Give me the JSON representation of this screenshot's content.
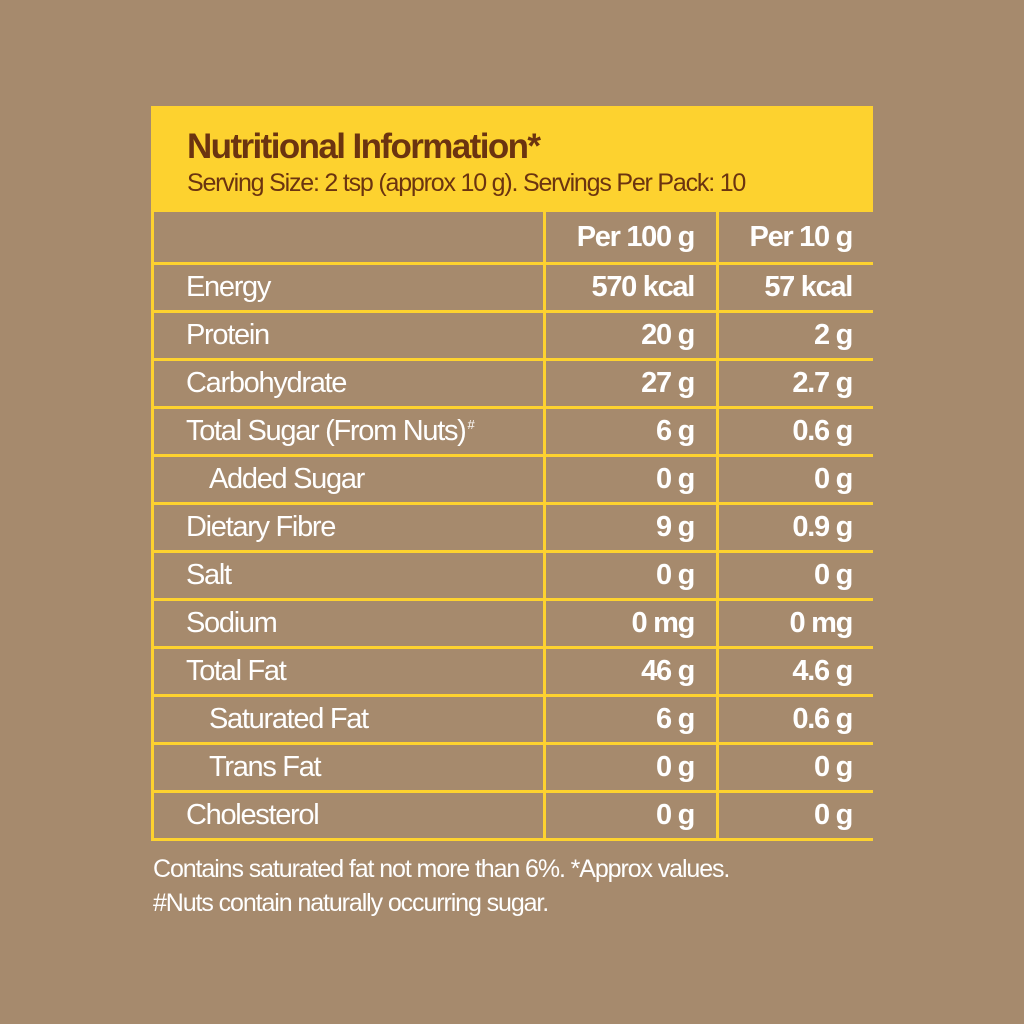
{
  "title": "Nutritional Information*",
  "serving": "Serving Size: 2 tsp (approx 10 g). Servings Per Pack: 10",
  "columns": [
    "",
    "Per 100 g",
    "Per 10 g"
  ],
  "rows": [
    {
      "name": "Energy",
      "per100": "570 kcal",
      "per10": "57 kcal",
      "indent": false
    },
    {
      "name": "Protein",
      "per100": "20 g",
      "per10": "2 g",
      "indent": false
    },
    {
      "name": "Carbohydrate",
      "per100": "27 g",
      "per10": "2.7 g",
      "indent": false
    },
    {
      "name": "Total Sugar (From Nuts)",
      "sup": "#",
      "per100": "6 g",
      "per10": "0.6 g",
      "indent": false
    },
    {
      "name": "Added Sugar",
      "per100": "0 g",
      "per10": "0 g",
      "indent": true
    },
    {
      "name": "Dietary Fibre",
      "per100": "9 g",
      "per10": "0.9 g",
      "indent": false
    },
    {
      "name": "Salt",
      "per100": "0 g",
      "per10": "0 g",
      "indent": false
    },
    {
      "name": "Sodium",
      "per100": "0 mg",
      "per10": "0 mg",
      "indent": false
    },
    {
      "name": "Total Fat",
      "per100": "46 g",
      "per10": "4.6 g",
      "indent": false
    },
    {
      "name": "Saturated Fat",
      "per100": "6 g",
      "per10": "0.6 g",
      "indent": true
    },
    {
      "name": "Trans Fat",
      "per100": "0 g",
      "per10": "0 g",
      "indent": true
    },
    {
      "name": "Cholesterol",
      "per100": "0 g",
      "per10": "0 g",
      "indent": false
    }
  ],
  "footnotes": [
    "Contains saturated fat not more than 6%. *Approx values.",
    "#Nuts contain naturally occurring sugar."
  ],
  "colors": {
    "background": "#a68a6d",
    "panel": "#fdd22f",
    "title": "#6b3410",
    "text": "#ffffff"
  }
}
